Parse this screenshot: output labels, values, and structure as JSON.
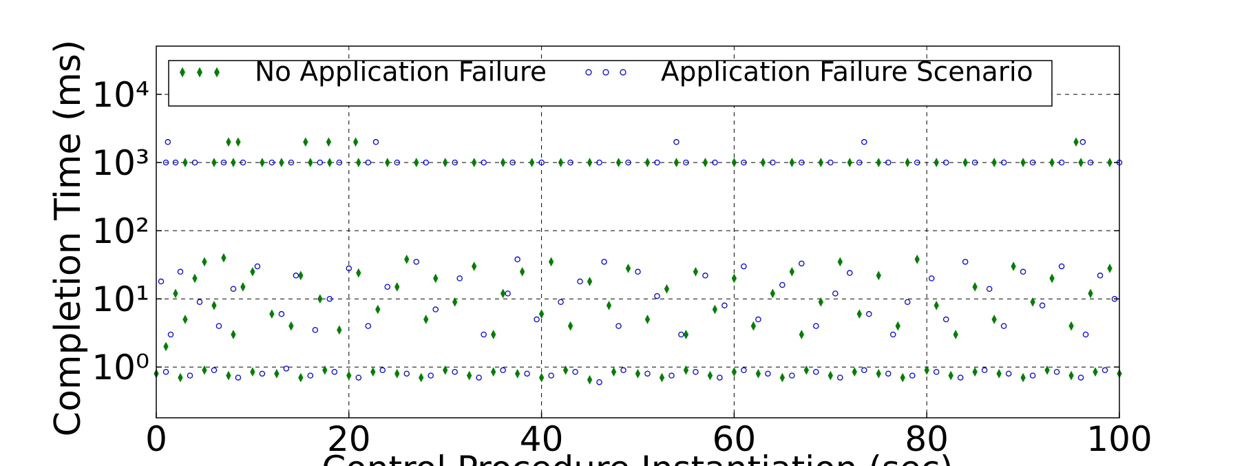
{
  "chart_data": {
    "type": "scatter",
    "x_label": "Control Procedure Instantiation (sec)",
    "y_label": "Completion Time (ms)",
    "xlim": [
      0,
      100
    ],
    "xticks": [
      0,
      20,
      40,
      60,
      80,
      100
    ],
    "ylim": [
      0.18,
      51000
    ],
    "yticks": [
      {
        "value": 1,
        "label": "10⁰"
      },
      {
        "value": 10,
        "label": "10¹"
      },
      {
        "value": 100,
        "label": "10²"
      },
      {
        "value": 1000,
        "label": "10³"
      },
      {
        "value": 10000,
        "label": "10⁴"
      }
    ],
    "log_y": true,
    "grid": true,
    "legend": "top",
    "series": [
      {
        "name": "No Application Failure",
        "color": "#008000",
        "marker": "diamond",
        "x": [
          0,
          2.5,
          5,
          7.5,
          10,
          12.5,
          15,
          17.5,
          20,
          22.5,
          25,
          27.5,
          30,
          32.5,
          35,
          37.5,
          40,
          42.5,
          45,
          47.5,
          50,
          52.5,
          55,
          57.5,
          60,
          62.5,
          65,
          67.5,
          70,
          72.5,
          75,
          77.5,
          80,
          82.5,
          85,
          87.5,
          90,
          92.5,
          95,
          97.5,
          100,
          3,
          6,
          8,
          11,
          13,
          16,
          18,
          21,
          24,
          27,
          30,
          33,
          36,
          39,
          42,
          45,
          48,
          51,
          54,
          57,
          60,
          63,
          66,
          69,
          72,
          75,
          78,
          81,
          84,
          87,
          90,
          93,
          96,
          99,
          7.5,
          8.5,
          15.5,
          17.9,
          20.7,
          95.5,
          1,
          2,
          3,
          4,
          5,
          6,
          7,
          8,
          9,
          10,
          12,
          14,
          15,
          17,
          19,
          21,
          23,
          25,
          26,
          28,
          29,
          31,
          33,
          35,
          36,
          38,
          40,
          41,
          43,
          45,
          47,
          49,
          51,
          53,
          55,
          56,
          58,
          60,
          62,
          64,
          66,
          67,
          69,
          71,
          73,
          75,
          77,
          79,
          81,
          83,
          85,
          87,
          89,
          91,
          93,
          95,
          97,
          99
        ],
        "values": [
          0.8,
          0.7,
          0.9,
          0.75,
          0.85,
          0.8,
          0.7,
          0.9,
          0.75,
          0.85,
          0.8,
          0.7,
          0.9,
          0.75,
          0.85,
          0.8,
          0.7,
          0.9,
          0.65,
          0.85,
          0.8,
          0.7,
          0.9,
          0.75,
          0.85,
          0.8,
          0.7,
          0.9,
          0.75,
          0.85,
          0.8,
          0.7,
          0.9,
          0.75,
          0.85,
          0.8,
          0.7,
          0.9,
          0.75,
          0.85,
          0.8,
          1000,
          1000,
          1000,
          1000,
          1000,
          1000,
          1000,
          1000,
          1000,
          1000,
          1000,
          1000,
          1000,
          1000,
          1000,
          1000,
          1000,
          1000,
          1000,
          1000,
          1000,
          1000,
          1000,
          1000,
          1000,
          1000,
          1000,
          1000,
          1000,
          1000,
          1000,
          1000,
          1000,
          1000,
          2000,
          2000,
          2000,
          2000,
          2000,
          2000,
          2,
          12,
          5,
          20,
          35,
          8,
          40,
          3,
          15,
          25,
          6,
          4,
          22,
          10,
          3.5,
          24,
          7,
          15,
          38,
          5,
          20,
          9,
          30,
          3,
          12,
          25,
          6,
          35,
          4,
          18,
          8,
          28,
          5,
          14,
          3,
          25,
          7,
          20,
          4,
          12,
          25,
          3,
          9,
          35,
          6,
          22,
          4,
          38,
          8,
          3,
          15,
          5,
          30,
          9,
          20,
          4,
          12,
          28
        ]
      },
      {
        "name": "Application Failure Scenario",
        "color": "#0000ff",
        "marker": "circle",
        "x": [
          1,
          3.5,
          6,
          8.5,
          11,
          13.5,
          16,
          18.5,
          21,
          23.5,
          26,
          28.5,
          31,
          33.5,
          36,
          38.5,
          41,
          43.5,
          46,
          48.5,
          51,
          53.5,
          56,
          58.5,
          61,
          63.5,
          66,
          68.5,
          71,
          73.5,
          76,
          78.5,
          81,
          83.5,
          86,
          88.5,
          91,
          93.5,
          96,
          98.5,
          1,
          2,
          4,
          7,
          9,
          12,
          14,
          17,
          19,
          22,
          25,
          28,
          31,
          34,
          37,
          40,
          43,
          46,
          49,
          52,
          55,
          58,
          61,
          64,
          67,
          70,
          73,
          76,
          79,
          82,
          85,
          88,
          91,
          94,
          97,
          100,
          1.2,
          22.8,
          54,
          73.5,
          96.2,
          0.5,
          1.5,
          2.5,
          4.5,
          6.5,
          8,
          10.5,
          13,
          14.5,
          16.5,
          18,
          20,
          22,
          24,
          27,
          29,
          31.5,
          34,
          36.5,
          37.5,
          39.5,
          42,
          44,
          46.5,
          48,
          50,
          52,
          54.5,
          57,
          59,
          61,
          62.5,
          65,
          67,
          68.5,
          70.5,
          72,
          74,
          76.5,
          78,
          80.5,
          82,
          84,
          86.5,
          88,
          90,
          92,
          94,
          96.5,
          98,
          99.5
        ],
        "values": [
          0.85,
          0.75,
          0.9,
          0.7,
          0.8,
          0.95,
          0.75,
          0.85,
          0.7,
          0.9,
          0.8,
          0.75,
          0.85,
          0.7,
          0.9,
          0.8,
          0.75,
          0.85,
          0.6,
          0.9,
          0.8,
          0.75,
          0.85,
          0.7,
          0.9,
          0.8,
          0.75,
          0.85,
          0.7,
          0.9,
          0.8,
          0.75,
          0.85,
          0.7,
          0.9,
          0.8,
          0.75,
          0.85,
          0.7,
          0.9,
          1000,
          1000,
          1000,
          1000,
          1000,
          1000,
          1000,
          1000,
          1000,
          1000,
          1000,
          1000,
          1000,
          1000,
          1000,
          1000,
          1000,
          1000,
          1000,
          1000,
          1000,
          1000,
          1000,
          1000,
          1000,
          1000,
          1000,
          1000,
          1000,
          1000,
          1000,
          1000,
          1000,
          1000,
          1000,
          1000,
          2000,
          2000,
          2000,
          2000,
          2000,
          18,
          3,
          25,
          9,
          4,
          14,
          30,
          6,
          22,
          3.5,
          10,
          28,
          4,
          15,
          35,
          7,
          20,
          3,
          12,
          38,
          5,
          9,
          18,
          35,
          4,
          25,
          11,
          3,
          22,
          8,
          30,
          5,
          16,
          33,
          4,
          12,
          24,
          6,
          3,
          9,
          20,
          5,
          35,
          14,
          4,
          25,
          8,
          30,
          3,
          22,
          10
        ]
      }
    ]
  }
}
